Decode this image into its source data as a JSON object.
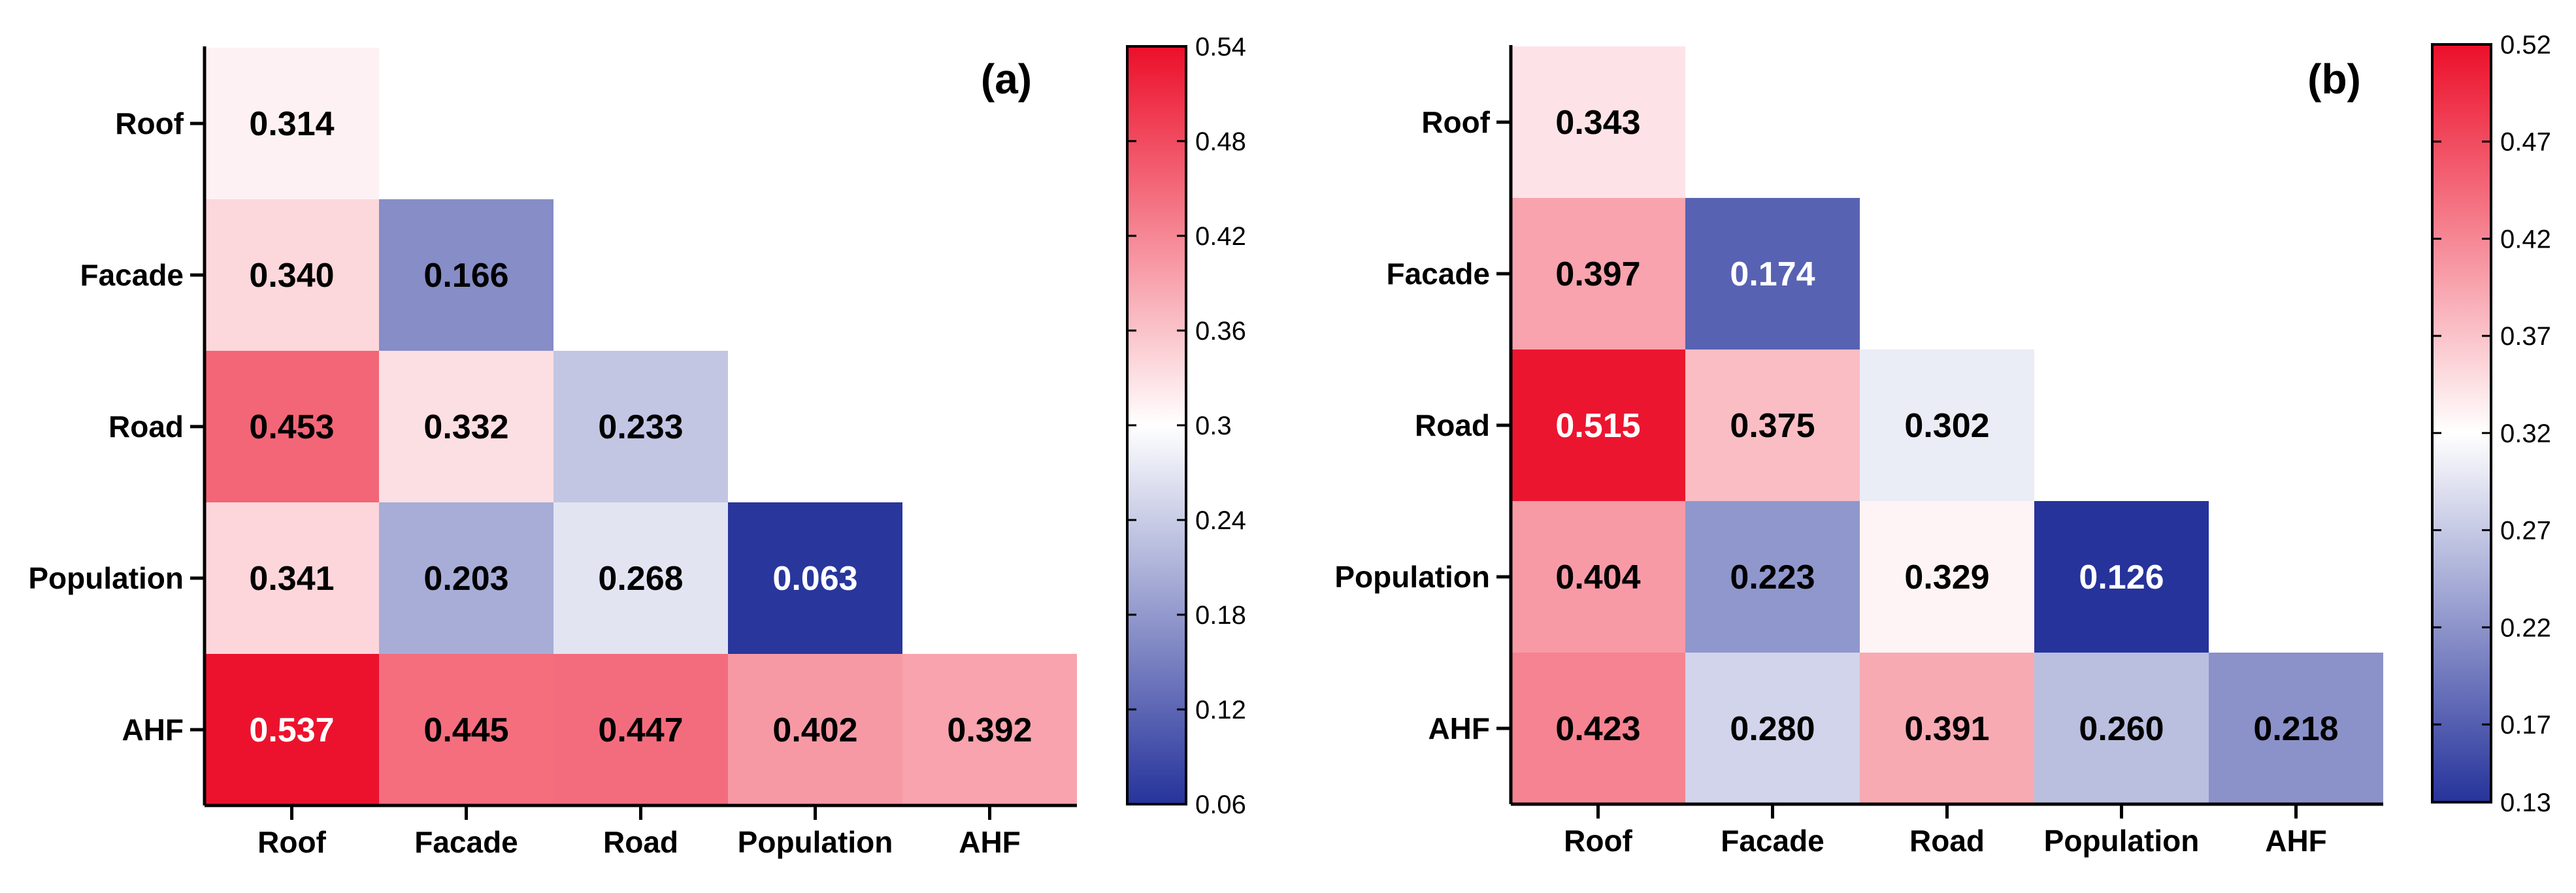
{
  "chart_data": [
    {
      "type": "heatmap",
      "title": "",
      "panel_label": "(a)",
      "rows": [
        "Roof",
        "Facade",
        "Road",
        "Population",
        "AHF"
      ],
      "columns": [
        "Roof",
        "Facade",
        "Road",
        "Population",
        "AHF"
      ],
      "values": [
        [
          0.314
        ],
        [
          0.34,
          0.166
        ],
        [
          0.453,
          0.332,
          0.233
        ],
        [
          0.341,
          0.203,
          0.268,
          0.063
        ],
        [
          0.537,
          0.445,
          0.447,
          0.402,
          0.392
        ]
      ],
      "labels": [
        [
          "0.314"
        ],
        [
          "0.340",
          "0.166"
        ],
        [
          "0.453",
          "0.332",
          "0.233"
        ],
        [
          "0.341",
          "0.203",
          "0.268",
          "0.063"
        ],
        [
          "0.537",
          "0.445",
          "0.447",
          "0.402",
          "0.392"
        ]
      ],
      "colorbar": {
        "min": 0.06,
        "mid": 0.3,
        "max": 0.54,
        "ticks": [
          0.06,
          0.12,
          0.18,
          0.24,
          0.3,
          0.36,
          0.42,
          0.48,
          0.54
        ],
        "tick_labels": [
          "0.06",
          "0.12",
          "0.18",
          "0.24",
          "0.3",
          "0.36",
          "0.42",
          "0.48",
          "0.54"
        ]
      }
    },
    {
      "type": "heatmap",
      "title": "",
      "panel_label": "(b)",
      "rows": [
        "Roof",
        "Facade",
        "Road",
        "Population",
        "AHF"
      ],
      "columns": [
        "Roof",
        "Facade",
        "Road",
        "Population",
        "AHF"
      ],
      "values": [
        [
          0.343
        ],
        [
          0.397,
          0.174
        ],
        [
          0.515,
          0.375,
          0.302
        ],
        [
          0.404,
          0.223,
          0.329,
          0.126
        ],
        [
          0.423,
          0.28,
          0.391,
          0.26,
          0.218
        ]
      ],
      "labels": [
        [
          "0.343"
        ],
        [
          "0.397",
          "0.174"
        ],
        [
          "0.515",
          "0.375",
          "0.302"
        ],
        [
          "0.404",
          "0.223",
          "0.329",
          "0.126"
        ],
        [
          "0.423",
          "0.280",
          "0.391",
          "0.260",
          "0.218"
        ]
      ],
      "colorbar": {
        "min": 0.13,
        "mid": 0.32,
        "max": 0.52,
        "ticks": [
          0.13,
          0.17,
          0.22,
          0.27,
          0.32,
          0.37,
          0.42,
          0.47,
          0.52
        ],
        "tick_labels": [
          "0.13",
          "0.17",
          "0.22",
          "0.27",
          "0.32",
          "0.37",
          "0.42",
          "0.47",
          "0.52"
        ]
      }
    }
  ],
  "colors": {
    "low": "#26339b",
    "mid": "#ffffff",
    "high": "#ec0f2a",
    "text_dark": "#000000",
    "text_light": "#ffffff"
  }
}
